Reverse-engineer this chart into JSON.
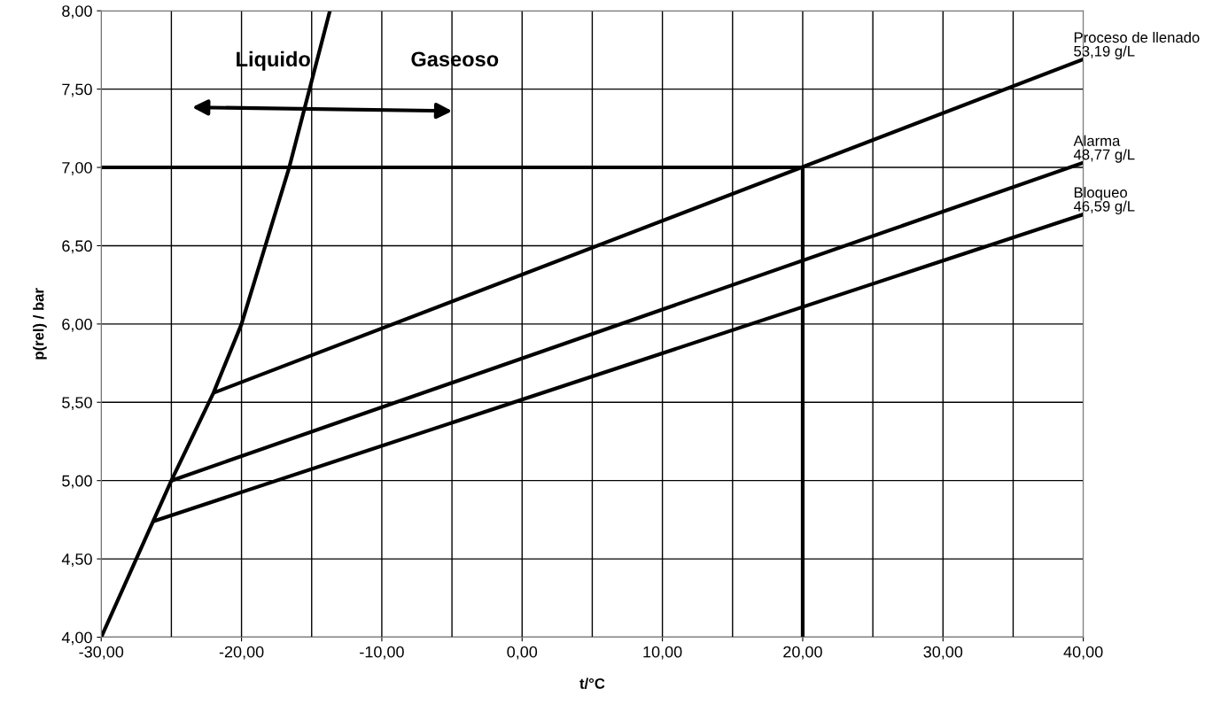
{
  "chart_data": {
    "type": "line",
    "xlabel": "t/°C",
    "ylabel": "p(rel) / bar",
    "xlim": [
      -30,
      40
    ],
    "ylim": [
      4,
      8
    ],
    "xticks": [
      {
        "value": -30,
        "label": "-30,00"
      },
      {
        "value": -20,
        "label": "-20,00"
      },
      {
        "value": -10,
        "label": "-10,00"
      },
      {
        "value": 0,
        "label": "0,00"
      },
      {
        "value": 10,
        "label": "10,00"
      },
      {
        "value": 20,
        "label": "20,00"
      },
      {
        "value": 30,
        "label": "30,00"
      },
      {
        "value": 40,
        "label": "40,00"
      }
    ],
    "yticks": [
      {
        "value": 4,
        "label": "4,00"
      },
      {
        "value": 4.5,
        "label": "4,50"
      },
      {
        "value": 5,
        "label": "5,00"
      },
      {
        "value": 5.5,
        "label": "5,50"
      },
      {
        "value": 6,
        "label": "6,00"
      },
      {
        "value": 6.5,
        "label": "6,50"
      },
      {
        "value": 7,
        "label": "7,00"
      },
      {
        "value": 7.5,
        "label": "7,50"
      },
      {
        "value": 8,
        "label": "8,00"
      }
    ],
    "grid": true,
    "marker": "none",
    "line_style": "solid",
    "series": [
      {
        "color": "#000000",
        "x": [
          -30,
          -26.3,
          -25,
          -22,
          -20,
          -16.6,
          -13.7
        ],
        "values": [
          4.0,
          4.74,
          5.0,
          5.56,
          6.0,
          7.0,
          8.0
        ]
      },
      {
        "name": "Proceso de llenado\n53,19 g/L",
        "color": "#000000",
        "x": [
          -22,
          40
        ],
        "values": [
          5.56,
          7.69
        ]
      },
      {
        "name": "Alarma\n48,77 g/L",
        "color": "#000000",
        "x": [
          -25,
          40
        ],
        "values": [
          5.0,
          7.03
        ]
      },
      {
        "name": "Bloqueo\n46,59 g/L",
        "color": "#000000",
        "x": [
          -26.3,
          40
        ],
        "values": [
          4.74,
          6.7
        ]
      },
      {
        "color": "#000000",
        "x": [
          -30,
          20
        ],
        "values": [
          7.0,
          7.0
        ]
      },
      {
        "color": "#000000",
        "x": [
          20,
          20
        ],
        "values": [
          4.0,
          7.0
        ]
      }
    ],
    "annotations": [
      "Liquido",
      "Gaseoso"
    ]
  }
}
